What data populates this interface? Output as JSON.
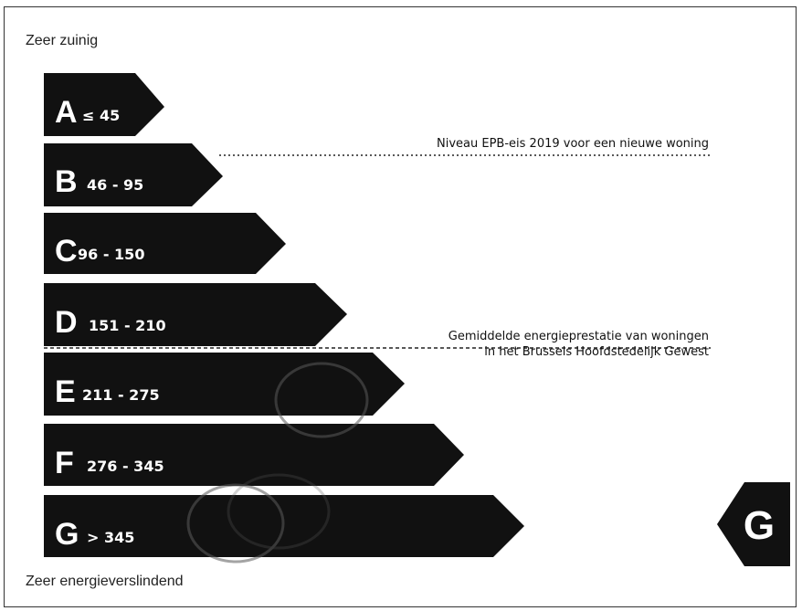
{
  "labels": {
    "top": "Zeer zuinig",
    "bottom": "Zeer energieverslindend"
  },
  "classes": [
    {
      "letter": "A",
      "range": "≤ 45"
    },
    {
      "letter": "B",
      "range": "46 - 95"
    },
    {
      "letter": "C",
      "range": "96 - 150"
    },
    {
      "letter": "D",
      "range": "151 - 210"
    },
    {
      "letter": "E",
      "range": "211 - 275"
    },
    {
      "letter": "F",
      "range": "276 - 345"
    },
    {
      "letter": "G",
      "range": "> 345"
    }
  ],
  "references": {
    "epb_2019": "Niveau EPB-eis 2019 voor een nieuwe woning",
    "average_line1": "Gemiddelde energieprestatie van woningen",
    "average_line2": "in het Brussels Hoofdstedelijk Gewest"
  },
  "current_class": "G",
  "colors": {
    "bar": "#111111",
    "text": "#ffffff",
    "frame": "#333333"
  }
}
